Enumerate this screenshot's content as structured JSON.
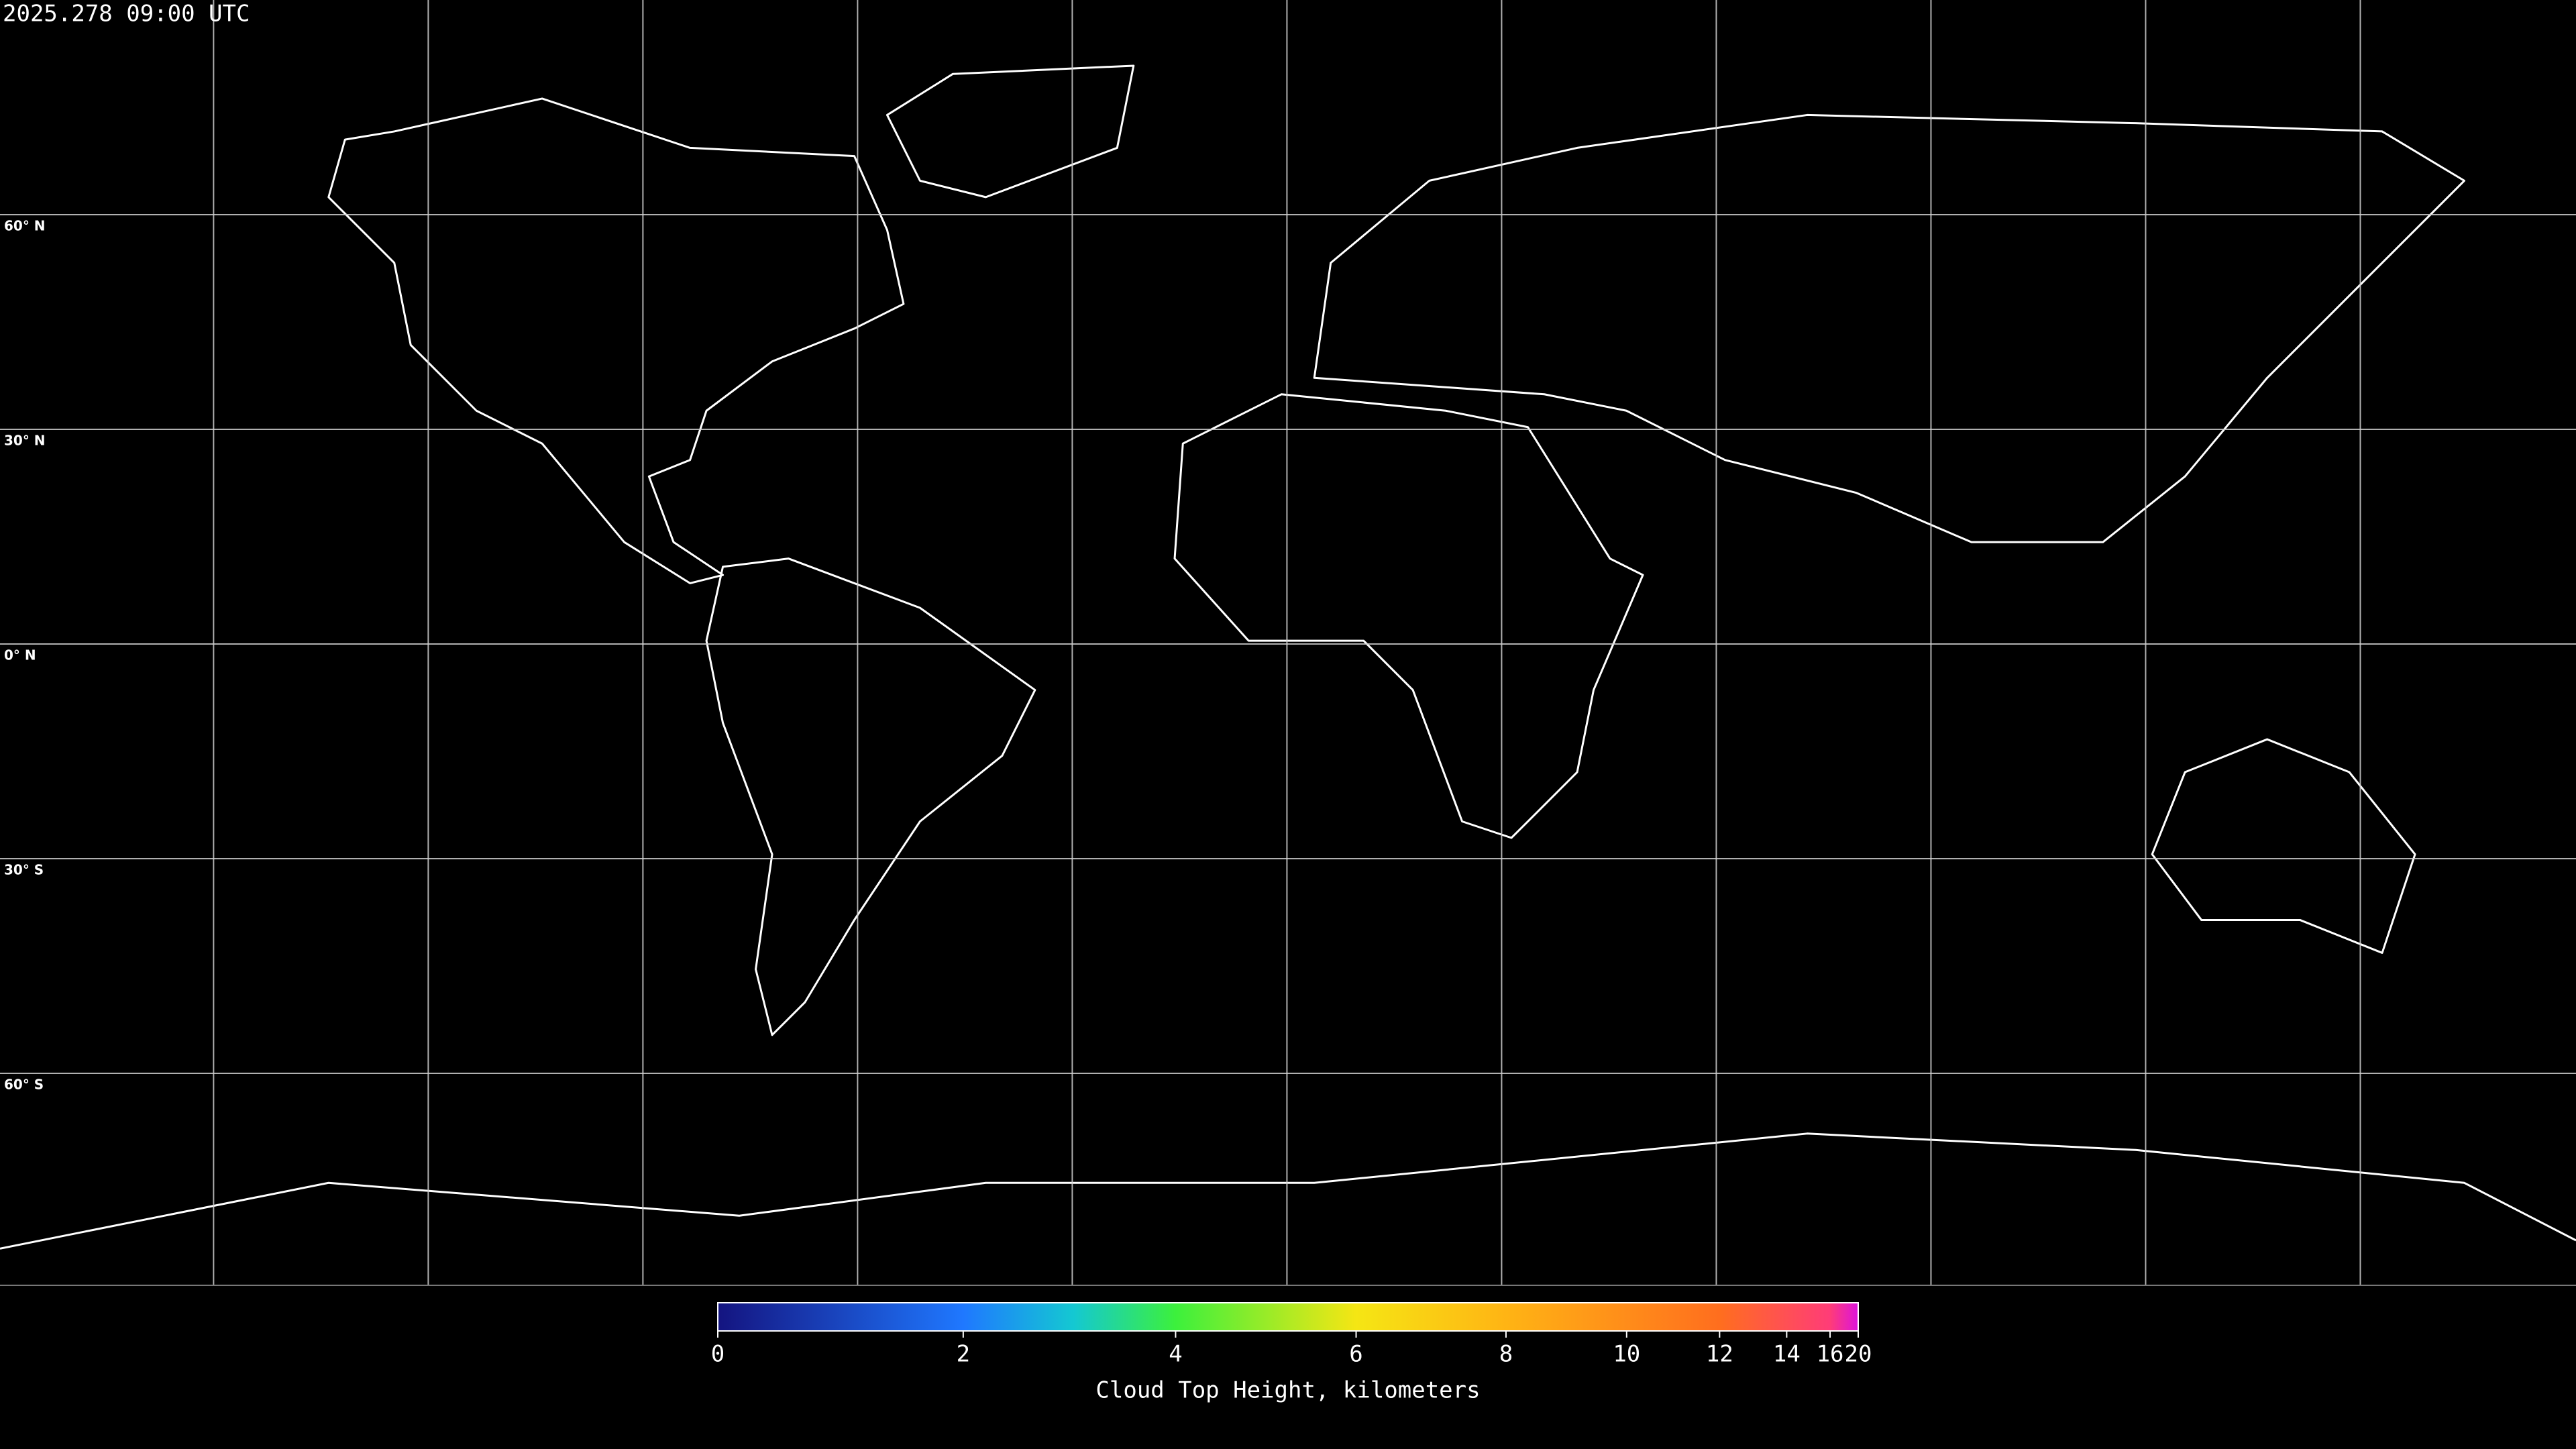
{
  "map": {
    "timestamp": "2025.278 09:00 UTC",
    "lat_labels": [
      "60° N",
      "30° N",
      "0° N",
      "30° S",
      "60° S"
    ],
    "colorbar": {
      "label": "Cloud Top Height, kilometers",
      "clim": [
        0,
        20
      ],
      "ticks": [
        0,
        2,
        4,
        6,
        8,
        10,
        12,
        14,
        16,
        20
      ],
      "colormap": [
        {
          "value": 0,
          "color": "#141480"
        },
        {
          "value": 2,
          "color": "#1f78ff"
        },
        {
          "value": 3,
          "color": "#14c8d2"
        },
        {
          "value": 4,
          "color": "#3cf03c"
        },
        {
          "value": 6,
          "color": "#f5e614"
        },
        {
          "value": 8,
          "color": "#ffb414"
        },
        {
          "value": 12,
          "color": "#ff6e1e"
        },
        {
          "value": 16,
          "color": "#ff3c78"
        },
        {
          "value": 20,
          "color": "#dc14dc"
        }
      ]
    }
  }
}
